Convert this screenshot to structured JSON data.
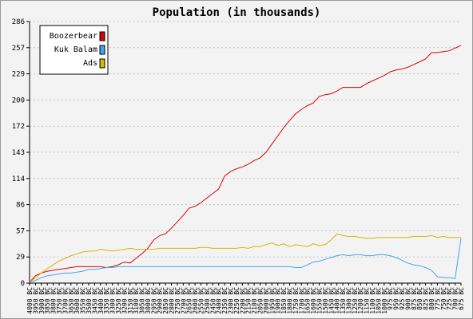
{
  "chart_data": {
    "type": "line",
    "title": "Population (in thousands)",
    "xlabel": "",
    "ylabel": "",
    "ylim": [
      0,
      286
    ],
    "y_ticks": [
      "0",
      "29",
      "57",
      "86",
      "114",
      "143",
      "172",
      "200",
      "229",
      "257",
      "286"
    ],
    "grid": "horizontal dashed",
    "legend_position": "top-left",
    "categories": [
      "4000 BC",
      "3950 BC",
      "3900 BC",
      "3850 BC",
      "3800 BC",
      "3750 BC",
      "3700 BC",
      "3650 BC",
      "3600 BC",
      "3550 BC",
      "3500 BC",
      "3450 BC",
      "3400 BC",
      "3350 BC",
      "3300 BC",
      "3250 BC",
      "3200 BC",
      "3150 BC",
      "3100 BC",
      "3050 BC",
      "3000 BC",
      "2950 BC",
      "2900 BC",
      "2850 BC",
      "2800 BC",
      "2750 BC",
      "2700 BC",
      "2650 BC",
      "2600 BC",
      "2550 BC",
      "2500 BC",
      "2450 BC",
      "2400 BC",
      "2350 BC",
      "2300 BC",
      "2250 BC",
      "2200 BC",
      "2150 BC",
      "2100 BC",
      "2050 BC",
      "2000 BC",
      "1950 BC",
      "1900 BC",
      "1850 BC",
      "1800 BC",
      "1750 BC",
      "1700 BC",
      "1650 BC",
      "1600 BC",
      "1550 BC",
      "1500 BC",
      "1450 BC",
      "1400 BC",
      "1350 BC",
      "1300 BC",
      "1250 BC",
      "1200 BC",
      "1150 BC",
      "1100 BC",
      "1050 BC",
      "1000 BC",
      "975 BC",
      "950 BC",
      "925 BC",
      "900 BC",
      "875 BC",
      "850 BC",
      "825 BC",
      "800 BC",
      "775 BC",
      "750 BC",
      "725 BC",
      "700 BC",
      "675 BC"
    ],
    "series": [
      {
        "name": "Boozerbear",
        "color": "#e00000",
        "values": [
          1,
          8,
          11,
          13,
          14,
          15,
          16,
          17,
          18,
          18,
          18,
          18,
          18,
          17,
          18,
          20,
          23,
          22,
          27,
          32,
          38,
          47,
          52,
          54,
          60,
          67,
          74,
          82,
          84,
          88,
          93,
          98,
          103,
          117,
          122,
          125,
          127,
          130,
          134,
          137,
          143,
          152,
          161,
          170,
          178,
          185,
          190,
          194,
          197,
          204,
          206,
          207,
          210,
          214,
          214,
          214,
          214,
          218,
          221,
          224,
          227,
          231,
          233,
          234,
          236,
          239,
          242,
          245,
          252,
          252,
          253,
          254,
          257,
          260
        ]
      },
      {
        "name": "Kuk Balam",
        "color": "#40a8f0",
        "values": [
          1,
          3,
          6,
          8,
          9,
          10,
          11,
          11,
          12,
          13,
          15,
          15,
          16,
          17,
          17,
          18,
          18,
          18,
          18,
          18,
          18,
          18,
          18,
          18,
          18,
          18,
          18,
          18,
          18,
          18,
          18,
          18,
          18,
          18,
          18,
          18,
          18,
          18,
          18,
          18,
          18,
          18,
          18,
          18,
          18,
          17,
          17,
          20,
          23,
          24,
          26,
          28,
          30,
          31,
          30,
          31,
          31,
          30,
          30,
          31,
          31,
          30,
          28,
          25,
          22,
          20,
          19,
          17,
          14,
          7,
          6,
          6,
          5,
          49
        ]
      },
      {
        "name": "Ads",
        "color": "#d4b800",
        "values": [
          1,
          6,
          11,
          16,
          20,
          24,
          27,
          30,
          32,
          34,
          35,
          35,
          37,
          36,
          35,
          36,
          37,
          38,
          37,
          37,
          37,
          37,
          38,
          38,
          38,
          38,
          38,
          38,
          38,
          39,
          39,
          38,
          38,
          38,
          38,
          38,
          39,
          38,
          40,
          40,
          42,
          44,
          41,
          43,
          40,
          42,
          41,
          40,
          43,
          41,
          42,
          47,
          54,
          52,
          51,
          51,
          50,
          49,
          49,
          50,
          50,
          50,
          50,
          50,
          50,
          51,
          51,
          51,
          52,
          50,
          51,
          50,
          50,
          50
        ]
      }
    ]
  }
}
